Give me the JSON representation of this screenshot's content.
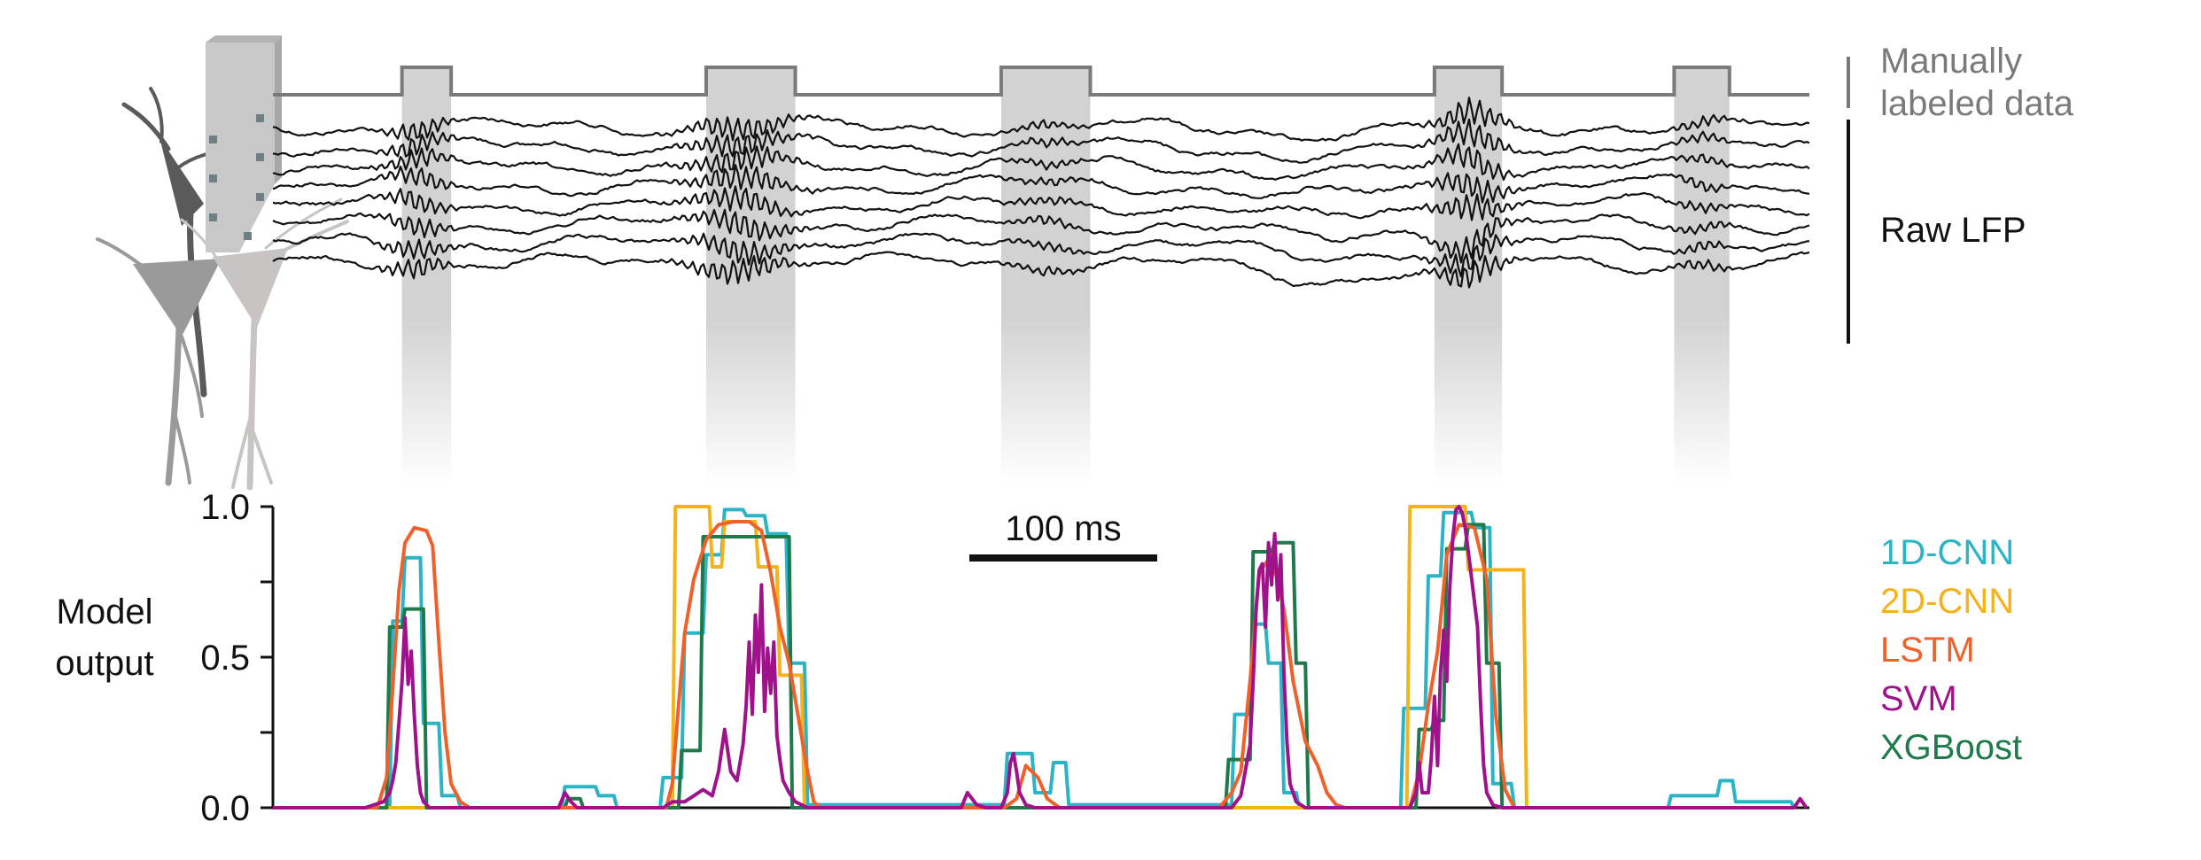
{
  "labels": {
    "manual_line1": "Manually",
    "manual_line2": "labeled data",
    "raw_lfp": "Raw LFP",
    "ylabel_line1": "Model",
    "ylabel_line2": "output",
    "scalebar": "100 ms"
  },
  "colors": {
    "shading": "#d2d2d2",
    "label_trace": "#7a7a7a",
    "lfp": "#111111",
    "electrode": "#c8c8c8",
    "neuron_dark": "#5a5a5a",
    "neuron_mid": "#9a9a9a",
    "neuron_light": "#c8c4c4"
  },
  "chart_data": {
    "type": "line",
    "xlabel": "",
    "ylabel": "Model output",
    "ylim": [
      0,
      1
    ],
    "yticks": [
      "0.0",
      "0.5",
      "1.0"
    ],
    "x_unit": "ms",
    "xlim": [
      0,
      500
    ],
    "scalebar_ms": 100,
    "grid": false,
    "legend_position": "right",
    "labeled_events_ms": [
      [
        42,
        58
      ],
      [
        141,
        170
      ],
      [
        237,
        266
      ],
      [
        378,
        400
      ],
      [
        456,
        474
      ]
    ],
    "series": [
      {
        "name": "1D-CNN",
        "color": "#2ab4c6",
        "step": true,
        "points": [
          [
            0,
            0
          ],
          [
            38,
            0
          ],
          [
            39,
            0.62
          ],
          [
            42,
            0.62
          ],
          [
            43,
            0.83
          ],
          [
            48,
            0.83
          ],
          [
            49,
            0.28
          ],
          [
            54,
            0.28
          ],
          [
            55,
            0.04
          ],
          [
            60,
            0.04
          ],
          [
            61,
            0
          ],
          [
            94,
            0
          ],
          [
            95,
            0.07
          ],
          [
            105,
            0.07
          ],
          [
            106,
            0.04
          ],
          [
            111,
            0.04
          ],
          [
            112,
            0
          ],
          [
            126,
            0
          ],
          [
            127,
            0.1
          ],
          [
            133,
            0.1
          ],
          [
            134,
            0.58
          ],
          [
            140,
            0.58
          ],
          [
            141,
            0.84
          ],
          [
            146,
            0.84
          ],
          [
            147,
            0.99
          ],
          [
            153,
            0.99
          ],
          [
            154,
            0.97
          ],
          [
            160,
            0.97
          ],
          [
            161,
            0.91
          ],
          [
            167,
            0.91
          ],
          [
            168,
            0.48
          ],
          [
            173,
            0.48
          ],
          [
            174,
            0.01
          ],
          [
            238,
            0.01
          ],
          [
            239,
            0.18
          ],
          [
            247,
            0.18
          ],
          [
            248,
            0.05
          ],
          [
            253,
            0.05
          ],
          [
            254,
            0.15
          ],
          [
            258,
            0.15
          ],
          [
            259,
            0.01
          ],
          [
            312,
            0.01
          ],
          [
            313,
            0.31
          ],
          [
            318,
            0.31
          ],
          [
            319,
            0.61
          ],
          [
            323,
            0.61
          ],
          [
            324,
            0.48
          ],
          [
            328,
            0.48
          ],
          [
            329,
            0.05
          ],
          [
            333,
            0.05
          ],
          [
            334,
            0
          ],
          [
            367,
            0
          ],
          [
            368,
            0.33
          ],
          [
            375,
            0.33
          ],
          [
            376,
            0.77
          ],
          [
            380,
            0.77
          ],
          [
            381,
            0.98
          ],
          [
            390,
            0.98
          ],
          [
            391,
            0.93
          ],
          [
            396,
            0.93
          ],
          [
            397,
            0.08
          ],
          [
            403,
            0.08
          ],
          [
            404,
            0
          ],
          [
            454,
            0
          ],
          [
            455,
            0.04
          ],
          [
            470,
            0.04
          ],
          [
            471,
            0.09
          ],
          [
            475,
            0.09
          ],
          [
            476,
            0.02
          ],
          [
            494,
            0.02
          ],
          [
            495,
            0
          ]
        ]
      },
      {
        "name": "2D-CNN",
        "color": "#f6b21b",
        "step": true,
        "points": [
          [
            0,
            0
          ],
          [
            130,
            0
          ],
          [
            131,
            1.0
          ],
          [
            142,
            1.0
          ],
          [
            143,
            0.8
          ],
          [
            146,
            0.8
          ],
          [
            147,
            0.95
          ],
          [
            157,
            0.95
          ],
          [
            158,
            0.8
          ],
          [
            164,
            0.8
          ],
          [
            165,
            0.44
          ],
          [
            172,
            0.44
          ],
          [
            173,
            0
          ],
          [
            369,
            0
          ],
          [
            370,
            1.0
          ],
          [
            388,
            1.0
          ],
          [
            389,
            0.79
          ],
          [
            407,
            0.79
          ],
          [
            408,
            0
          ]
        ]
      },
      {
        "name": "LSTM",
        "color": "#f0602a",
        "step": false,
        "points": [
          [
            0,
            0
          ],
          [
            34,
            0
          ],
          [
            37,
            0.1
          ],
          [
            39,
            0.4
          ],
          [
            41,
            0.72
          ],
          [
            43,
            0.88
          ],
          [
            46,
            0.93
          ],
          [
            50,
            0.92
          ],
          [
            52,
            0.87
          ],
          [
            54,
            0.55
          ],
          [
            56,
            0.25
          ],
          [
            58,
            0.08
          ],
          [
            61,
            0.02
          ],
          [
            64,
            0
          ],
          [
            128,
            0
          ],
          [
            130,
            0.08
          ],
          [
            132,
            0.34
          ],
          [
            134,
            0.58
          ],
          [
            137,
            0.76
          ],
          [
            141,
            0.89
          ],
          [
            145,
            0.94
          ],
          [
            150,
            0.95
          ],
          [
            155,
            0.95
          ],
          [
            159,
            0.92
          ],
          [
            162,
            0.78
          ],
          [
            165,
            0.6
          ],
          [
            168,
            0.48
          ],
          [
            171,
            0.3
          ],
          [
            174,
            0.12
          ],
          [
            176,
            0.02
          ],
          [
            178,
            0
          ],
          [
            238,
            0
          ],
          [
            242,
            0.03
          ],
          [
            245,
            0.14
          ],
          [
            249,
            0.1
          ],
          [
            252,
            0.03
          ],
          [
            256,
            0
          ],
          [
            308,
            0
          ],
          [
            312,
            0.05
          ],
          [
            315,
            0.12
          ],
          [
            318,
            0.42
          ],
          [
            321,
            0.78
          ],
          [
            325,
            0.84
          ],
          [
            329,
            0.66
          ],
          [
            332,
            0.42
          ],
          [
            336,
            0.22
          ],
          [
            340,
            0.14
          ],
          [
            343,
            0.05
          ],
          [
            346,
            0.01
          ],
          [
            349,
            0
          ],
          [
            370,
            0
          ],
          [
            373,
            0.12
          ],
          [
            376,
            0.34
          ],
          [
            379,
            0.52
          ],
          [
            382,
            0.84
          ],
          [
            386,
            0.94
          ],
          [
            391,
            0.93
          ],
          [
            395,
            0.76
          ],
          [
            398,
            0.3
          ],
          [
            401,
            0.06
          ],
          [
            404,
            0
          ]
        ]
      },
      {
        "name": "SVM",
        "color": "#a0118c",
        "step": false,
        "points": [
          [
            0,
            0
          ],
          [
            30,
            0
          ],
          [
            33,
            0.01
          ],
          [
            36,
            0.02
          ],
          [
            38,
            0.05
          ],
          [
            39,
            0.09
          ],
          [
            40,
            0.15
          ],
          [
            41,
            0.28
          ],
          [
            42,
            0.42
          ],
          [
            43,
            0.63
          ],
          [
            44,
            0.41
          ],
          [
            45,
            0.52
          ],
          [
            46,
            0.31
          ],
          [
            47,
            0.14
          ],
          [
            48,
            0.05
          ],
          [
            49,
            0.02
          ],
          [
            51,
            0
          ],
          [
            93,
            0
          ],
          [
            95,
            0.05
          ],
          [
            97,
            0.02
          ],
          [
            99,
            0
          ],
          [
            127,
            0
          ],
          [
            130,
            0.02
          ],
          [
            134,
            0.02
          ],
          [
            137,
            0.04
          ],
          [
            140,
            0.06
          ],
          [
            143,
            0.04
          ],
          [
            145,
            0.12
          ],
          [
            147,
            0.26
          ],
          [
            149,
            0.12
          ],
          [
            151,
            0.09
          ],
          [
            153,
            0.21
          ],
          [
            154,
            0.34
          ],
          [
            155,
            0.55
          ],
          [
            156,
            0.31
          ],
          [
            157,
            0.64
          ],
          [
            158,
            0.45
          ],
          [
            159,
            0.74
          ],
          [
            160,
            0.32
          ],
          [
            161,
            0.53
          ],
          [
            162,
            0.38
          ],
          [
            163,
            0.55
          ],
          [
            164,
            0.24
          ],
          [
            165,
            0.16
          ],
          [
            166,
            0.09
          ],
          [
            168,
            0.05
          ],
          [
            170,
            0.02
          ],
          [
            174,
            0
          ],
          [
            224,
            0
          ],
          [
            226,
            0.05
          ],
          [
            229,
            0.01
          ],
          [
            232,
            0
          ],
          [
            237,
            0
          ],
          [
            239,
            0.05
          ],
          [
            240,
            0.15
          ],
          [
            241,
            0.18
          ],
          [
            242,
            0.12
          ],
          [
            243,
            0.05
          ],
          [
            245,
            0.01
          ],
          [
            248,
            0
          ],
          [
            312,
            0
          ],
          [
            315,
            0.04
          ],
          [
            318,
            0.21
          ],
          [
            319,
            0.42
          ],
          [
            320,
            0.67
          ],
          [
            321,
            0.79
          ],
          [
            322,
            0.81
          ],
          [
            323,
            0.6
          ],
          [
            324,
            0.88
          ],
          [
            325,
            0.74
          ],
          [
            326,
            0.91
          ],
          [
            327,
            0.69
          ],
          [
            328,
            0.84
          ],
          [
            329,
            0.45
          ],
          [
            330,
            0.22
          ],
          [
            331,
            0.08
          ],
          [
            333,
            0.02
          ],
          [
            336,
            0
          ],
          [
            370,
            0
          ],
          [
            372,
            0.05
          ],
          [
            373,
            0.15
          ],
          [
            374,
            0.05
          ],
          [
            376,
            0.05
          ],
          [
            377,
            0.17
          ],
          [
            378,
            0.37
          ],
          [
            379,
            0.14
          ],
          [
            380,
            0.45
          ],
          [
            381,
            0.59
          ],
          [
            382,
            0.42
          ],
          [
            383,
            0.73
          ],
          [
            384,
            0.9
          ],
          [
            385,
            0.99
          ],
          [
            386,
            1.0
          ],
          [
            387,
            0.98
          ],
          [
            388,
            0.93
          ],
          [
            389,
            0.85
          ],
          [
            390,
            0.77
          ],
          [
            392,
            0.6
          ],
          [
            393,
            0.35
          ],
          [
            394,
            0.14
          ],
          [
            395,
            0.05
          ],
          [
            397,
            0.01
          ],
          [
            400,
            0
          ],
          [
            495,
            0
          ],
          [
            497,
            0.03
          ],
          [
            499,
            0
          ]
        ]
      },
      {
        "name": "XGBoost",
        "color": "#1e7a4a",
        "step": true,
        "points": [
          [
            0,
            0
          ],
          [
            37,
            0
          ],
          [
            38,
            0.6
          ],
          [
            42,
            0.6
          ],
          [
            43,
            0.66
          ],
          [
            49,
            0.66
          ],
          [
            50,
            0
          ],
          [
            95,
            0
          ],
          [
            96,
            0.03
          ],
          [
            100,
            0.03
          ],
          [
            101,
            0
          ],
          [
            132,
            0
          ],
          [
            133,
            0.19
          ],
          [
            139,
            0.19
          ],
          [
            140,
            0.9
          ],
          [
            168,
            0.9
          ],
          [
            169,
            0
          ],
          [
            310,
            0
          ],
          [
            311,
            0.16
          ],
          [
            318,
            0.16
          ],
          [
            319,
            0.85
          ],
          [
            325,
            0.85
          ],
          [
            326,
            0.88
          ],
          [
            332,
            0.88
          ],
          [
            333,
            0.48
          ],
          [
            336,
            0.48
          ],
          [
            337,
            0
          ],
          [
            372,
            0
          ],
          [
            373,
            0.26
          ],
          [
            377,
            0.26
          ],
          [
            378,
            0.29
          ],
          [
            381,
            0.29
          ],
          [
            382,
            0.86
          ],
          [
            388,
            0.86
          ],
          [
            389,
            0.94
          ],
          [
            394,
            0.94
          ],
          [
            395,
            0.48
          ],
          [
            399,
            0.48
          ],
          [
            400,
            0
          ]
        ]
      }
    ]
  }
}
